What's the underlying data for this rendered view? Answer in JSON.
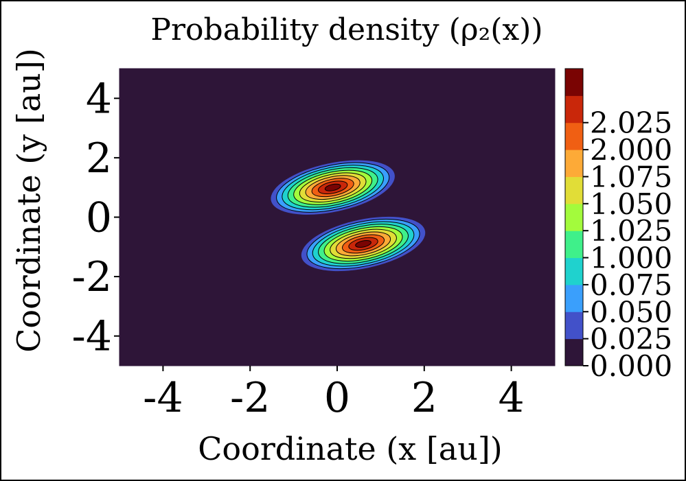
{
  "chart_data": {
    "type": "heatmap",
    "subtype": "filled-contour",
    "title": "Probability density (ρ₂(x))",
    "xlabel": "Coordinate (x [au])",
    "ylabel": "Coordinate (y [au])",
    "xlim": [
      -5,
      5
    ],
    "ylim": [
      -5,
      5
    ],
    "xticks": [
      -4,
      -2,
      0,
      2,
      4
    ],
    "yticks": [
      -4,
      -2,
      0,
      2,
      4
    ],
    "xtick_labels": [
      "-4",
      "-2",
      "0",
      "2",
      "4"
    ],
    "ytick_labels": [
      "4",
      "2",
      "0",
      "-2",
      "-4"
    ],
    "colorbar": {
      "levels": [
        "0.000",
        "0.025",
        "0.050",
        "0.075",
        "1.000",
        "1.025",
        "1.050",
        "1.075",
        "2.000",
        "2.025"
      ],
      "colors": [
        "#2e1538",
        "#4251c9",
        "#3a9ffc",
        "#1fd2ce",
        "#3ff08a",
        "#a3fb3c",
        "#e1dd37",
        "#fdaa37",
        "#f05f13",
        "#c9270a",
        "#7a0403"
      ]
    },
    "peaks": [
      {
        "name": "upper lobe",
        "x": -0.1,
        "y": 1.0,
        "rx": 1.45,
        "ry": 0.82,
        "tilt_deg": 12
      },
      {
        "name": "lower lobe",
        "x": 0.6,
        "y": -0.9,
        "rx": 1.45,
        "ry": 0.82,
        "tilt_deg": 12
      }
    ],
    "contour_count": 10,
    "background_color": "#2e1538"
  }
}
